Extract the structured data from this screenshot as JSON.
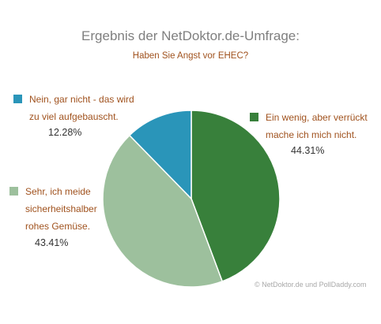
{
  "header": {
    "title": "Ergebnis der NetDoktor.de-Umfrage:",
    "question": "Haben Sie Angst vor EHEC?"
  },
  "colors": {
    "series": [
      "#38803b",
      "#9dc09d",
      "#2a95b9"
    ],
    "title": "#7f7f7f",
    "labels": "#a0521e"
  },
  "chart_data": {
    "type": "pie",
    "title": "Ergebnis der NetDoktor.de-Umfrage:",
    "subtitle": "Haben Sie Angst vor EHEC?",
    "categories": [
      "Ein wenig, aber verrückt mache ich mich nicht.",
      "Sehr, ich meide sicherheitshalber rohes Gemüse.",
      "Nein, gar nicht - das wird zu viel aufgebauscht."
    ],
    "values": [
      44.31,
      43.41,
      12.28
    ],
    "value_labels": [
      "44.31%",
      "43.41%",
      "12.28%"
    ],
    "legend": "around-pie"
  },
  "legend": [
    {
      "lines": [
        "Ein wenig, aber verrückt",
        "mache ich mich nicht."
      ],
      "percent": "44.31%"
    },
    {
      "lines": [
        "Sehr, ich meide",
        "sicherheitshalber",
        "rohes Gemüse."
      ],
      "percent": "43.41%"
    },
    {
      "lines": [
        "Nein, gar nicht - das wird",
        "zu viel aufgebauscht."
      ],
      "percent": "12.28%"
    }
  ],
  "footer": {
    "credit": "© NetDoktor.de und PollDaddy.com"
  }
}
